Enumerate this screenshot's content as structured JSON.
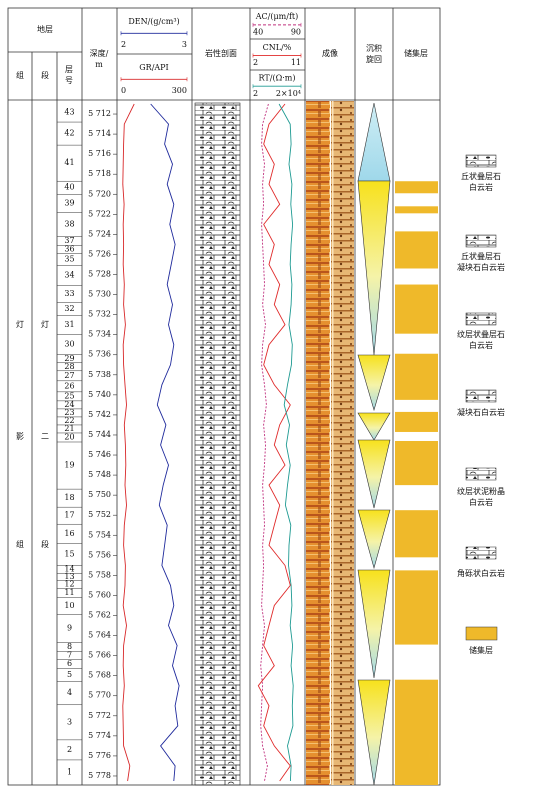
{
  "chart_data": {
    "type": "well_log",
    "header": {
      "strata": "地层",
      "formation": "组",
      "member": "段",
      "layer_no": [
        "层",
        "号"
      ],
      "depth": [
        "深度/",
        "m"
      ],
      "lithology": "岩性剖面",
      "imaging": "成像",
      "cycle": [
        "沉积",
        "旋回"
      ],
      "reservoir": "储集层"
    },
    "formation_name": [
      "灯",
      "影",
      "组"
    ],
    "member_name": [
      "灯",
      "二",
      "段"
    ],
    "ylim": [
      5710.9,
      5778.9
    ],
    "yticks": [
      {
        "value": 5712,
        "label": "5 712"
      },
      {
        "value": 5714,
        "label": "5 714"
      },
      {
        "value": 5716,
        "label": "5 716"
      },
      {
        "value": 5718,
        "label": "5 718"
      },
      {
        "value": 5720,
        "label": "5 720"
      },
      {
        "value": 5722,
        "label": "5 722"
      },
      {
        "value": 5724,
        "label": "5 724"
      },
      {
        "value": 5726,
        "label": "5 726"
      },
      {
        "value": 5728,
        "label": "5 728"
      },
      {
        "value": 5730,
        "label": "5 730"
      },
      {
        "value": 5732,
        "label": "5 732"
      },
      {
        "value": 5734,
        "label": "5 734"
      },
      {
        "value": 5736,
        "label": "5 736"
      },
      {
        "value": 5738,
        "label": "5 738"
      },
      {
        "value": 5740,
        "label": "5 740"
      },
      {
        "value": 5742,
        "label": "5 742"
      },
      {
        "value": 5744,
        "label": "5 744"
      },
      {
        "value": 5746,
        "label": "5 746"
      },
      {
        "value": 5748,
        "label": "5 748"
      },
      {
        "value": 5750,
        "label": "5 750"
      },
      {
        "value": 5752,
        "label": "5 752"
      },
      {
        "value": 5754,
        "label": "5 754"
      },
      {
        "value": 5756,
        "label": "5 756"
      },
      {
        "value": 5758,
        "label": "5 758"
      },
      {
        "value": 5760,
        "label": "5 760"
      },
      {
        "value": 5762,
        "label": "5 762"
      },
      {
        "value": 5764,
        "label": "5 764"
      },
      {
        "value": 5766,
        "label": "5 766"
      },
      {
        "value": 5768,
        "label": "5 768"
      },
      {
        "value": 5770,
        "label": "5 770"
      },
      {
        "value": 5772,
        "label": "5 772"
      },
      {
        "value": 5774,
        "label": "5 774"
      },
      {
        "value": 5776,
        "label": "5 776"
      },
      {
        "value": 5778,
        "label": "5 778"
      }
    ],
    "layers": [
      {
        "label": "43",
        "top": 5710.9,
        "bottom": 5712.8
      },
      {
        "label": "42",
        "top": 5712.8,
        "bottom": 5715.1
      },
      {
        "label": "41",
        "top": 5715.1,
        "bottom": 5718.7
      },
      {
        "label": "40",
        "top": 5718.7,
        "bottom": 5720.0
      },
      {
        "label": "39",
        "top": 5720.0,
        "bottom": 5721.8
      },
      {
        "label": "38",
        "top": 5721.8,
        "bottom": 5724.2
      },
      {
        "label": "37",
        "top": 5724.2,
        "bottom": 5725.1
      },
      {
        "label": "36",
        "top": 5725.1,
        "bottom": 5725.9
      },
      {
        "label": "35",
        "top": 5725.9,
        "bottom": 5727.1
      },
      {
        "label": "34",
        "top": 5727.1,
        "bottom": 5729.1
      },
      {
        "label": "33",
        "top": 5729.1,
        "bottom": 5730.8
      },
      {
        "label": "32",
        "top": 5730.8,
        "bottom": 5732.1
      },
      {
        "label": "31",
        "top": 5732.1,
        "bottom": 5734.0
      },
      {
        "label": "30",
        "top": 5734.0,
        "bottom": 5736.0
      },
      {
        "label": "29",
        "top": 5736.0,
        "bottom": 5736.8
      },
      {
        "label": "28",
        "top": 5736.8,
        "bottom": 5737.6
      },
      {
        "label": "27",
        "top": 5737.6,
        "bottom": 5738.6
      },
      {
        "label": "26",
        "top": 5738.6,
        "bottom": 5739.7
      },
      {
        "label": "25",
        "top": 5739.7,
        "bottom": 5740.6
      },
      {
        "label": "24",
        "top": 5740.6,
        "bottom": 5741.4
      },
      {
        "label": "23",
        "top": 5741.4,
        "bottom": 5742.2
      },
      {
        "label": "22",
        "top": 5742.2,
        "bottom": 5743.0
      },
      {
        "label": "21",
        "top": 5743.0,
        "bottom": 5743.8
      },
      {
        "label": "20",
        "top": 5743.8,
        "bottom": 5744.7
      },
      {
        "label": "19",
        "top": 5744.7,
        "bottom": 5749.4
      },
      {
        "label": "18",
        "top": 5749.4,
        "bottom": 5751.2
      },
      {
        "label": "17",
        "top": 5751.2,
        "bottom": 5752.9
      },
      {
        "label": "16",
        "top": 5752.9,
        "bottom": 5754.8
      },
      {
        "label": "15",
        "top": 5754.8,
        "bottom": 5757.0
      },
      {
        "label": "14",
        "top": 5757.0,
        "bottom": 5757.8
      },
      {
        "label": "13",
        "top": 5757.8,
        "bottom": 5758.5
      },
      {
        "label": "12",
        "top": 5758.5,
        "bottom": 5759.3
      },
      {
        "label": "11",
        "top": 5759.3,
        "bottom": 5760.2
      },
      {
        "label": "10",
        "top": 5760.2,
        "bottom": 5761.9
      },
      {
        "label": "9",
        "top": 5761.9,
        "bottom": 5764.7
      },
      {
        "label": "8",
        "top": 5764.7,
        "bottom": 5765.6
      },
      {
        "label": "7",
        "top": 5765.6,
        "bottom": 5766.4
      },
      {
        "label": "6",
        "top": 5766.4,
        "bottom": 5767.3
      },
      {
        "label": "5",
        "top": 5767.3,
        "bottom": 5768.6
      },
      {
        "label": "4",
        "top": 5768.6,
        "bottom": 5770.9
      },
      {
        "label": "3",
        "top": 5770.9,
        "bottom": 5774.4
      },
      {
        "label": "2",
        "top": 5774.4,
        "bottom": 5776.4
      },
      {
        "label": "1",
        "top": 5776.4,
        "bottom": 5778.9
      }
    ],
    "depths": [
      5711,
      5713,
      5715,
      5717,
      5719,
      5721,
      5723,
      5725,
      5727,
      5729,
      5731,
      5733,
      5735,
      5737,
      5739,
      5741,
      5743,
      5745,
      5747,
      5749,
      5751,
      5753,
      5755,
      5757,
      5759,
      5761,
      5763,
      5765,
      5767,
      5769,
      5771,
      5773,
      5775,
      5777,
      5778.5
    ],
    "tracks": [
      {
        "series": [
          {
            "name": "DEN/(g/cm³)",
            "color": "#1f2a9c",
            "xlim": [
              2,
              3
            ],
            "xticks": [
              2,
              3
            ],
            "values": [
              2.45,
              2.72,
              2.66,
              2.78,
              2.7,
              2.8,
              2.74,
              2.82,
              2.76,
              2.7,
              2.78,
              2.72,
              2.8,
              2.75,
              2.62,
              2.55,
              2.68,
              2.6,
              2.72,
              2.64,
              2.58,
              2.7,
              2.66,
              2.62,
              2.75,
              2.8,
              2.72,
              2.85,
              2.78,
              2.88,
              2.82,
              2.86,
              2.6,
              2.82,
              2.8
            ]
          },
          {
            "name": "GR/API",
            "color": "#d8282a",
            "xlim": [
              0,
              300
            ],
            "xticks": [
              0,
              300
            ],
            "values": [
              60,
              15,
              12,
              10,
              8,
              14,
              10,
              12,
              10,
              15,
              12,
              20,
              10,
              12,
              18,
              25,
              15,
              20,
              22,
              18,
              25,
              15,
              12,
              20,
              18,
              10,
              25,
              12,
              10,
              15,
              8,
              10,
              12,
              40,
              30
            ]
          }
        ]
      },
      {
        "series": [
          {
            "name": "AC/(μm/ft)",
            "color": "#c0307e",
            "style": "dashed",
            "xlim": [
              40,
              90
            ],
            "xticks": [
              40,
              90
            ],
            "values": [
              56,
              50,
              49,
              52,
              50,
              51,
              49,
              50,
              51,
              52,
              50,
              53,
              50,
              49,
              52,
              54,
              51,
              53,
              52,
              50,
              51,
              52,
              50,
              51,
              50,
              49,
              52,
              50,
              48,
              50,
              49,
              48,
              50,
              55,
              52
            ]
          },
          {
            "name": "CNL/%",
            "color": "#e02a2a",
            "xlim": [
              2,
              11
            ],
            "xticks": [
              2,
              11
            ],
            "values": [
              8,
              5,
              4,
              6,
              5,
              7,
              4,
              6,
              5,
              7,
              6,
              8,
              5,
              4,
              6,
              9,
              7,
              6,
              8,
              5,
              7,
              6,
              5,
              8,
              9,
              6,
              5,
              4,
              6,
              3,
              5,
              4,
              6,
              9,
              7
            ]
          },
          {
            "name": "RT/(Ω·m)",
            "color": "#1e9a92",
            "log": true,
            "xlim": [
              2,
              20000
            ],
            "xticks": [
              2,
              {
                "value": 20000,
                "label": "2×10⁴"
              }
            ],
            "values": [
              300,
              2500,
              3000,
              2000,
              3500,
              2800,
              4000,
              3000,
              2500,
              3500,
              3000,
              2000,
              3800,
              3200,
              1500,
              800,
              2200,
              1200,
              2500,
              1500,
              1000,
              2800,
              2000,
              1800,
              3000,
              3500,
              2500,
              4000,
              3000,
              4500,
              3800,
              4200,
              1500,
              3000,
              2600
            ]
          }
        ]
      }
    ],
    "reservoir_color": "#efb92a",
    "reservoir_intervals": [
      [
        5718.7,
        5719.9
      ],
      [
        5721.2,
        5721.9
      ],
      [
        5723.7,
        5727.4
      ],
      [
        5729.0,
        5733.9
      ],
      [
        5735.9,
        5740.5
      ],
      [
        5741.7,
        5743.7
      ],
      [
        5744.6,
        5749.0
      ],
      [
        5751.5,
        5756.2
      ],
      [
        5757.5,
        5764.9
      ],
      [
        5768.4,
        5778.9
      ]
    ],
    "legend": [
      {
        "lines": [
          "丘状叠层石",
          "白云岩"
        ]
      },
      {
        "lines": [
          "丘状叠层石",
          "凝块石白云岩"
        ]
      },
      {
        "lines": [
          "纹层状叠层石",
          "白云岩"
        ]
      },
      {
        "lines": [
          "凝块石白云岩"
        ]
      },
      {
        "lines": [
          "纹层状泥粉晶",
          "白云岩"
        ]
      },
      {
        "lines": [
          "角砾状白云岩"
        ]
      },
      {
        "lines": [
          "储集层"
        ]
      }
    ]
  }
}
